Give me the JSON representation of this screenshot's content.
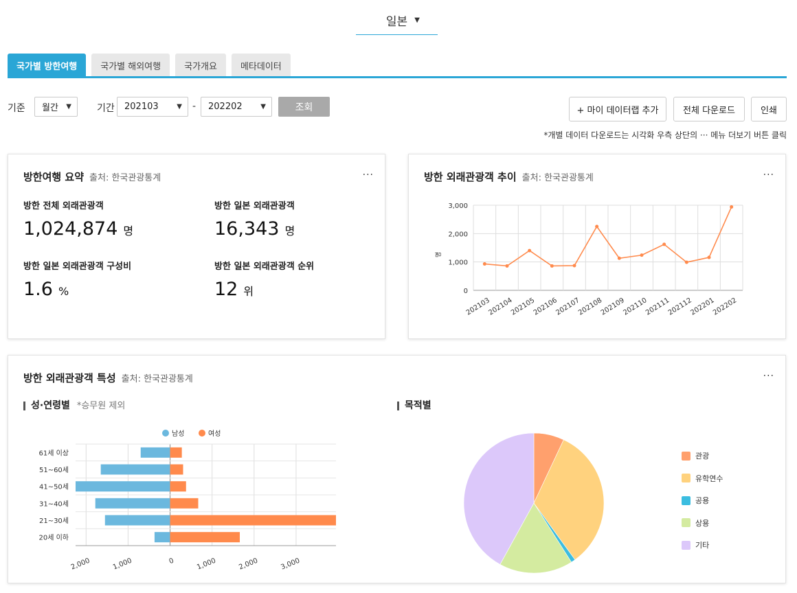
{
  "country_select": {
    "value": "일본"
  },
  "tabs": [
    {
      "label": "국가별 방한여행",
      "active": true
    },
    {
      "label": "국가별 해외여행",
      "active": false
    },
    {
      "label": "국가개요",
      "active": false
    },
    {
      "label": "메타데이터",
      "active": false
    }
  ],
  "filters": {
    "basis_label": "기준",
    "basis_value": "월간",
    "period_label": "기간",
    "period_from": "202103",
    "period_sep": "-",
    "period_to": "202202",
    "query_button": "조회"
  },
  "toolbar": {
    "add_mydatalab": "+ 마이 데이터랩 추가",
    "download_all": "전체 다운로드",
    "print": "인쇄",
    "note": "*개별 데이터 다운로드는 시각화 우측 상단의 ··· 메뉴 더보기 버튼 클릭"
  },
  "summary": {
    "title": "방한여행 요약",
    "source": "출처: 한국관광통계",
    "more": "···",
    "stats": [
      {
        "label": "방한 전체 외래관광객",
        "value": "1,024,874",
        "unit": "명"
      },
      {
        "label": "방한 일본 외래관광객",
        "value": "16,343",
        "unit": "명"
      },
      {
        "label": "방한 일본 외래관광객 구성비",
        "value": "1.6",
        "unit": "%"
      },
      {
        "label": "방한 일본 외래관광객 순위",
        "value": "12",
        "unit": "위"
      }
    ]
  },
  "trend": {
    "title": "방한 외래관광객 추이",
    "source": "출처: 한국관광통계",
    "more": "···",
    "ylabel": "명"
  },
  "characteristics": {
    "title": "방한 외래관광객 특성",
    "source": "출처: 한국관광통계",
    "more": "···",
    "age_title": "성·연령별",
    "age_note": "*승무원 제외",
    "purpose_title": "목적별"
  },
  "colors": {
    "accent": "#2aa6d6",
    "line": "#ff8a4c",
    "male": "#6bb8de",
    "female": "#ff8a4c"
  },
  "chart_data": [
    {
      "id": "trend",
      "type": "line",
      "x": [
        "202103",
        "202104",
        "202105",
        "202106",
        "202107",
        "202108",
        "202109",
        "202110",
        "202111",
        "202112",
        "202201",
        "202202"
      ],
      "series": [
        {
          "values": [
            930,
            860,
            1400,
            860,
            870,
            2250,
            1130,
            1240,
            1620,
            990,
            1160,
            2940
          ]
        }
      ],
      "ylim": [
        0,
        3000
      ],
      "yticks": [
        "0",
        "1,000",
        "2,000",
        "3,000"
      ],
      "ylabel": "명",
      "grid": true
    },
    {
      "id": "age_gender",
      "type": "bar",
      "orientation": "horizontal",
      "categories": [
        "61세 이상",
        "51~60세",
        "41~50세",
        "31~40세",
        "21~30세",
        "20세 이하"
      ],
      "series": [
        {
          "name": "남성",
          "values": [
            700,
            1650,
            2250,
            1780,
            1550,
            370
          ]
        },
        {
          "name": "여성",
          "values": [
            280,
            310,
            380,
            670,
            3950,
            1660
          ]
        }
      ],
      "xlim": [
        -2250,
        3950
      ],
      "xticks": [
        {
          "v": -2000,
          "label": "2,000"
        },
        {
          "v": -1000,
          "label": "1,000"
        },
        {
          "v": 0,
          "label": "0"
        },
        {
          "v": 1000,
          "label": "1,000"
        },
        {
          "v": 2000,
          "label": "2,000"
        },
        {
          "v": 3000,
          "label": "3,000"
        }
      ],
      "legend": "top-center",
      "grid": true
    },
    {
      "id": "purpose",
      "type": "pie",
      "categories": [
        "관광",
        "유학연수",
        "공용",
        "상용",
        "기타"
      ],
      "values": [
        7,
        33,
        1,
        17,
        42
      ],
      "colors": [
        "#ffa06d",
        "#ffd27e",
        "#3bbde0",
        "#d4eba0",
        "#dcc8fa"
      ],
      "legend": "right"
    }
  ]
}
